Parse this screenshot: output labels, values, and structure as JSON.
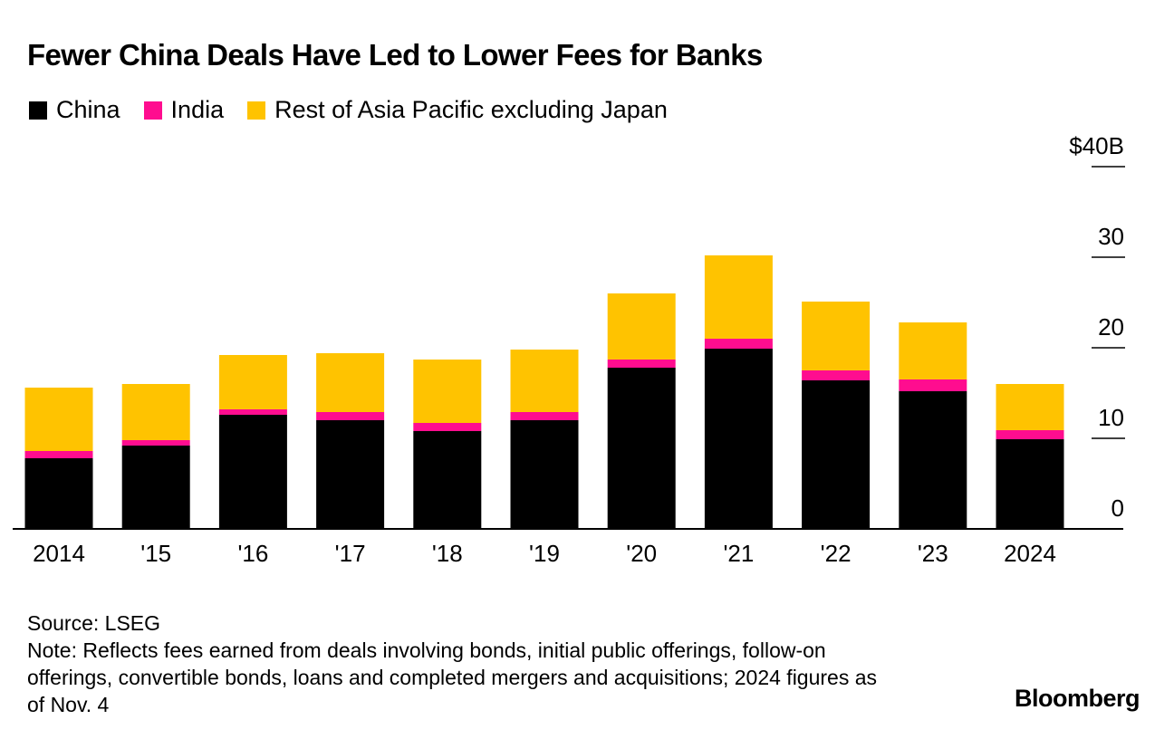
{
  "chart_data": {
    "type": "bar",
    "stacked": true,
    "title": "Fewer China Deals Have Led to Lower Fees for Banks",
    "categories": [
      "2014",
      "'15",
      "'16",
      "'17",
      "'18",
      "'19",
      "'20",
      "'21",
      "'22",
      "'23",
      "2024"
    ],
    "series": [
      {
        "name": "China",
        "color": "#000000",
        "values": [
          7.8,
          9.2,
          12.6,
          12.0,
          10.8,
          12.0,
          17.8,
          19.9,
          16.4,
          15.2,
          9.9
        ]
      },
      {
        "name": "India",
        "color": "#ff0d8f",
        "values": [
          0.8,
          0.6,
          0.6,
          0.9,
          0.9,
          0.9,
          0.9,
          1.1,
          1.1,
          1.3,
          1.0
        ]
      },
      {
        "name": "Rest of Asia Pacific excluding Japan",
        "color": "#ffc300",
        "values": [
          7.0,
          6.2,
          6.0,
          6.5,
          7.0,
          6.9,
          7.3,
          9.2,
          7.6,
          6.3,
          5.1
        ]
      }
    ],
    "y_ticks": [
      "$40B",
      "30",
      "20",
      "10",
      "0"
    ],
    "ylim": [
      0,
      40
    ],
    "xlabel": "",
    "ylabel": "",
    "legend_position": "top-left"
  },
  "footer": {
    "source": "Source: LSEG",
    "note": "Note: Reflects fees earned from deals involving bonds, initial public offerings, follow-on offerings, convertible bonds, loans and completed mergers and acquisitions; 2024 figures as of Nov. 4"
  },
  "brand": "Bloomberg"
}
